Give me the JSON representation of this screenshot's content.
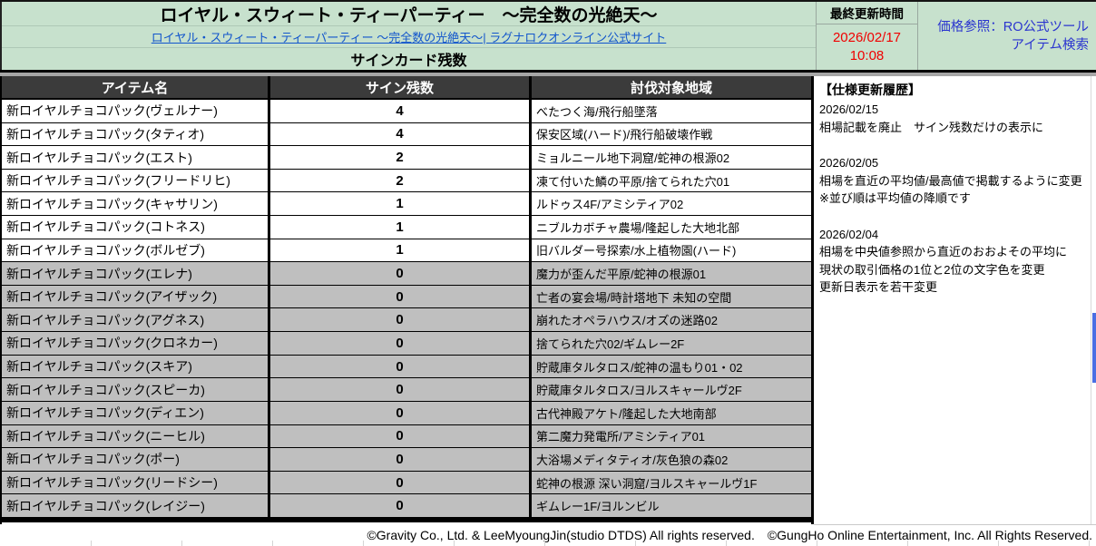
{
  "header": {
    "title": "ロイヤル・スウィート・ティーパーティー　〜完全数の光絶天〜",
    "link": "ロイヤル・スウィート・ティーパーティー 〜完全数の光絶天〜| ラグナロクオンライン公式サイト",
    "section_title": "サインカード残数",
    "last_updated_label": "最終更新時間",
    "last_updated_date": "2026/02/17",
    "last_updated_time": "10:08",
    "price_ref_line1": "価格参照：RO公式ツール",
    "price_ref_line2": "アイテム検索"
  },
  "table": {
    "columns": [
      "アイテム名",
      "サイン残数",
      "討伐対象地域"
    ],
    "rows": [
      {
        "item": "新ロイヤルチョコパック(ヴェルナー)",
        "count": "4",
        "area": "べたつく海/飛行船墜落"
      },
      {
        "item": "新ロイヤルチョコパック(タティオ)",
        "count": "4",
        "area": "保安区域(ハード)/飛行船破壊作戦"
      },
      {
        "item": "新ロイヤルチョコパック(エスト)",
        "count": "2",
        "area": "ミョルニール地下洞窟/蛇神の根源02"
      },
      {
        "item": "新ロイヤルチョコパック(フリードリヒ)",
        "count": "2",
        "area": "凍て付いた鱗の平原/捨てられた穴01"
      },
      {
        "item": "新ロイヤルチョコパック(キャサリン)",
        "count": "1",
        "area": "ルドゥス4F/アミシティア02"
      },
      {
        "item": "新ロイヤルチョコパック(コトネス)",
        "count": "1",
        "area": "ニブルカボチャ農場/隆起した大地北部"
      },
      {
        "item": "新ロイヤルチョコパック(ボルゼブ)",
        "count": "1",
        "area": "旧バルダー号探索/水上植物園(ハード)"
      },
      {
        "item": "新ロイヤルチョコパック(エレナ)",
        "count": "0",
        "area": "魔力が歪んだ平原/蛇神の根源01"
      },
      {
        "item": "新ロイヤルチョコパック(アイザック)",
        "count": "0",
        "area": "亡者の宴会場/時計塔地下 未知の空間"
      },
      {
        "item": "新ロイヤルチョコパック(アグネス)",
        "count": "0",
        "area": "崩れたオペラハウス/オズの迷路02"
      },
      {
        "item": "新ロイヤルチョコパック(クロネカー)",
        "count": "0",
        "area": "捨てられた穴02/ギムレー2F"
      },
      {
        "item": "新ロイヤルチョコパック(スキア)",
        "count": "0",
        "area": "貯蔵庫タルタロス/蛇神の温もり01・02"
      },
      {
        "item": "新ロイヤルチョコパック(スピーカ)",
        "count": "0",
        "area": "貯蔵庫タルタロス/ヨルスキャールヴ2F"
      },
      {
        "item": "新ロイヤルチョコパック(ディエン)",
        "count": "0",
        "area": "古代神殿アケト/隆起した大地南部"
      },
      {
        "item": "新ロイヤルチョコパック(ニーヒル)",
        "count": "0",
        "area": "第二魔力発電所/アミシティア01"
      },
      {
        "item": "新ロイヤルチョコパック(ポー)",
        "count": "0",
        "area": "大浴場メディタティオ/灰色狼の森02"
      },
      {
        "item": "新ロイヤルチョコパック(リードシー)",
        "count": "0",
        "area": "蛇神の根源 深い洞窟/ヨルスキャールヴ1F"
      },
      {
        "item": "新ロイヤルチョコパック(レイジー)",
        "count": "0",
        "area": "ギムレー1F/ヨルンビル"
      }
    ]
  },
  "history": {
    "title": "【仕様更新履歴】",
    "entries": [
      {
        "date": "2026/02/15",
        "lines": [
          "相場記載を廃止　サイン残数だけの表示に"
        ]
      },
      {
        "date": "2026/02/05",
        "lines": [
          "相場を直近の平均値/最高値で掲載するように変更",
          "※並び順は平均値の降順です"
        ]
      },
      {
        "date": "2026/02/04",
        "lines": [
          "相場を中央値参照から直近のおおよその平均に",
          "現状の取引価格の1位と2位の文字色を変更",
          "更新日表示を若干変更"
        ]
      }
    ]
  },
  "footer": {
    "copyright": "©Gravity Co., Ltd. & LeeMyoungJin(studio DTDS) All rights reserved.　©GungHo Online Entertainment, Inc. All Rights Reserved."
  },
  "colors": {
    "banner_green": "#c7e1cd",
    "header_dark": "#3b3b3b",
    "zero_row_gray": "#bfbfbf",
    "updated_red": "#f00000",
    "link_blue": "#1155cc",
    "price_ref_blue": "#2b35cf",
    "scrollbar_blue": "#4a6fe3"
  }
}
